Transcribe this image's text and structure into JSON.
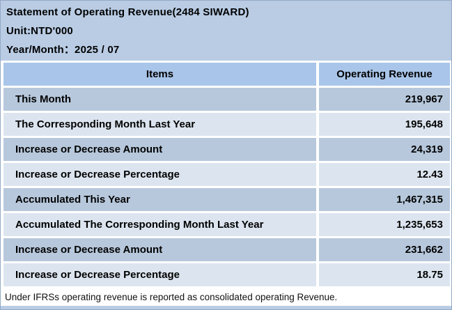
{
  "header": {
    "title": "Statement of Operating Revenue(2484 SIWARD)",
    "unit": "Unit:NTD'000",
    "period": "Year/Month：2025 / 07"
  },
  "table": {
    "columns": {
      "items": "Items",
      "value": "Operating Revenue"
    },
    "rows": [
      {
        "item": "This Month",
        "value": "219,967"
      },
      {
        "item": "The Corresponding Month Last Year",
        "value": "195,648"
      },
      {
        "item": "Increase or Decrease Amount",
        "value": "24,319"
      },
      {
        "item": "Increase or Decrease Percentage",
        "value": "12.43"
      },
      {
        "item": "Accumulated This Year",
        "value": "1,467,315"
      },
      {
        "item": "Accumulated The Corresponding Month Last Year",
        "value": "1,235,653"
      },
      {
        "item": "Increase or Decrease Amount",
        "value": "231,662"
      },
      {
        "item": "Increase or Decrease Percentage",
        "value": "18.75"
      }
    ]
  },
  "footer": {
    "note": "Under IFRSs operating revenue is reported as consolidated operating Revenue."
  },
  "colors": {
    "page_bg": "#b9cce4",
    "table_header_bg": "#a9c5e9",
    "row_dark_bg": "#b7c8dc",
    "row_light_bg": "#dce5ef",
    "separator": "#ffffff",
    "footer_bg": "#ffffff",
    "text": "#000000"
  }
}
